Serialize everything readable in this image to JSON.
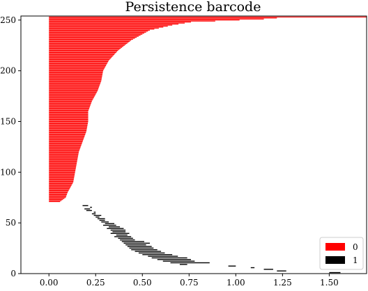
{
  "chart_data": {
    "type": "barcode",
    "title": "Persistence barcode",
    "xlim": [
      -0.15,
      1.7
    ],
    "ylim": [
      0,
      254
    ],
    "x_ticks": [
      0.0,
      0.25,
      0.5,
      0.75,
      1.0,
      1.25,
      1.5
    ],
    "x_tick_labels": [
      "0.00",
      "0.25",
      "0.50",
      "0.75",
      "1.00",
      "1.25",
      "1.50"
    ],
    "y_ticks": [
      0,
      50,
      100,
      150,
      200,
      250
    ],
    "y_tick_labels": [
      "0",
      "50",
      "100",
      "150",
      "200",
      "250"
    ],
    "legend_position": "lower-right",
    "series": [
      {
        "name": "0",
        "color": "#ff0000",
        "bars_start_index": 71,
        "bars_end_index": 253,
        "birth": 0.0,
        "death_profile": [
          [
            71,
            0.06
          ],
          [
            75,
            0.09
          ],
          [
            80,
            0.1
          ],
          [
            90,
            0.13
          ],
          [
            100,
            0.14
          ],
          [
            110,
            0.15
          ],
          [
            120,
            0.16
          ],
          [
            130,
            0.18
          ],
          [
            140,
            0.2
          ],
          [
            150,
            0.21
          ],
          [
            160,
            0.21
          ],
          [
            170,
            0.23
          ],
          [
            180,
            0.26
          ],
          [
            190,
            0.28
          ],
          [
            200,
            0.29
          ],
          [
            210,
            0.32
          ],
          [
            220,
            0.37
          ],
          [
            230,
            0.44
          ],
          [
            240,
            0.54
          ],
          [
            245,
            0.66
          ],
          [
            248,
            0.76
          ],
          [
            251,
            1.15
          ],
          [
            252,
            1.22
          ],
          [
            253,
            1.7
          ]
        ]
      },
      {
        "name": "1",
        "color": "#000000",
        "bars": [
          [
            0.18,
            0.21
          ],
          [
            0.22,
            0.23
          ],
          [
            0.19,
            0.22
          ],
          [
            0.2,
            0.23
          ],
          [
            0.24,
            0.25
          ],
          [
            0.23,
            0.25
          ],
          [
            0.24,
            0.28
          ],
          [
            0.25,
            0.27
          ],
          [
            0.26,
            0.3
          ],
          [
            0.27,
            0.3
          ],
          [
            0.28,
            0.32
          ],
          [
            0.3,
            0.35
          ],
          [
            0.29,
            0.36
          ],
          [
            0.32,
            0.38
          ],
          [
            0.31,
            0.4
          ],
          [
            0.33,
            0.41
          ],
          [
            0.34,
            0.41
          ],
          [
            0.33,
            0.43
          ],
          [
            0.36,
            0.42
          ],
          [
            0.35,
            0.44
          ],
          [
            0.37,
            0.45
          ],
          [
            0.38,
            0.46
          ],
          [
            0.39,
            0.51
          ],
          [
            0.4,
            0.54
          ],
          [
            0.41,
            0.52
          ],
          [
            0.42,
            0.55
          ],
          [
            0.43,
            0.56
          ],
          [
            0.44,
            0.58
          ],
          [
            0.46,
            0.6
          ],
          [
            0.48,
            0.62
          ],
          [
            0.5,
            0.66
          ],
          [
            0.53,
            0.69
          ],
          [
            0.55,
            0.74
          ],
          [
            0.58,
            0.76
          ],
          [
            0.61,
            0.78
          ],
          [
            0.65,
            0.86
          ],
          [
            0.7,
            0.74
          ],
          [
            0.96,
            1.0
          ],
          [
            1.08,
            1.1
          ],
          [
            1.15,
            1.2
          ],
          [
            1.22,
            1.27
          ],
          [
            1.5,
            1.56
          ]
        ],
        "bars_y_start": 67,
        "bars_y_end": 1
      }
    ]
  }
}
